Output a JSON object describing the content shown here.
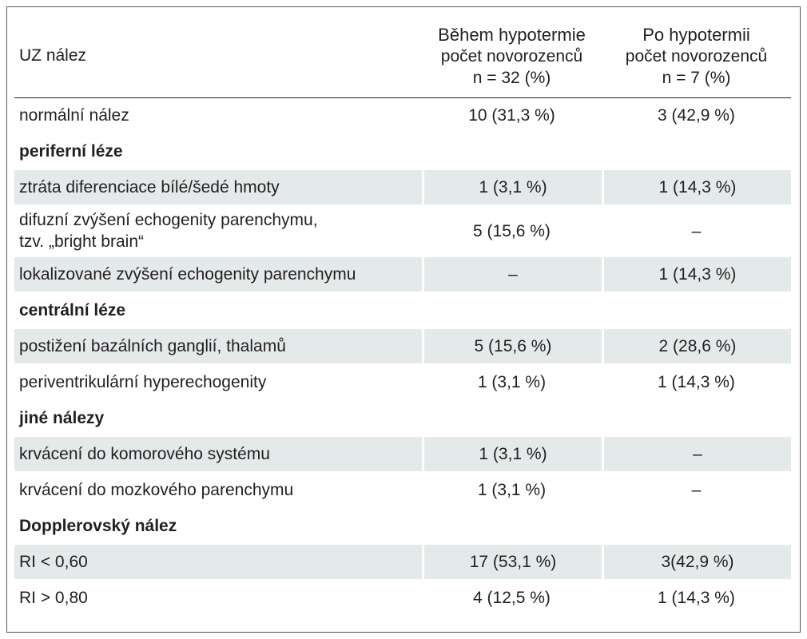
{
  "table": {
    "header": {
      "col1": "UZ nález",
      "col2": [
        "Během hypotermie",
        "počet novorozenců",
        "n = 32 (%)"
      ],
      "col3": [
        "Po hypotermii",
        "počet novorozenců",
        "n = 7 (%)"
      ]
    },
    "rows": [
      {
        "type": "data",
        "shaded": false,
        "label": "normální nález",
        "during": "10 (31,3 %)",
        "after": "3 (42,9 %)"
      },
      {
        "type": "section",
        "label": "periferní léze"
      },
      {
        "type": "data",
        "shaded": true,
        "label": "ztráta diferenciace bílé/šedé hmoty",
        "during": "1 (3,1 %)",
        "after": "1 (14,3 %)"
      },
      {
        "type": "data",
        "shaded": false,
        "tall": true,
        "label": "difuzní zvýšení echogenity parenchymu,",
        "label2": "tzv. „bright brain“",
        "during": "5 (15,6 %)",
        "after": "–"
      },
      {
        "type": "data",
        "shaded": true,
        "label": "lokalizované zvýšení echogenity parenchymu",
        "during": "–",
        "after": "1 (14,3 %)"
      },
      {
        "type": "section",
        "label": "centrální léze"
      },
      {
        "type": "data",
        "shaded": true,
        "label": "postižení bazálních ganglií, thalamů",
        "during": "5 (15,6 %)",
        "after": "2 (28,6 %)"
      },
      {
        "type": "data",
        "shaded": false,
        "label": "periventrikulární hyperechogenity",
        "during": "1 (3,1 %)",
        "after": "1 (14,3 %)"
      },
      {
        "type": "section",
        "label": "jiné nálezy"
      },
      {
        "type": "data",
        "shaded": true,
        "label": "krvácení do komorového systému",
        "during": "1 (3,1 %)",
        "after": "–"
      },
      {
        "type": "data",
        "shaded": false,
        "label": "krvácení do mozkového parenchymu",
        "during": "1 (3,1 %)",
        "after": "–"
      },
      {
        "type": "section",
        "label": "Dopplerovský nález"
      },
      {
        "type": "data",
        "shaded": true,
        "label": "RI < 0,60",
        "during": "17 (53,1 %)",
        "after": "3(42,9 %)"
      },
      {
        "type": "data",
        "shaded": false,
        "label": "RI > 0,80",
        "during": "4 (12,5 %)",
        "after": "1 (14,3 %)"
      }
    ]
  }
}
